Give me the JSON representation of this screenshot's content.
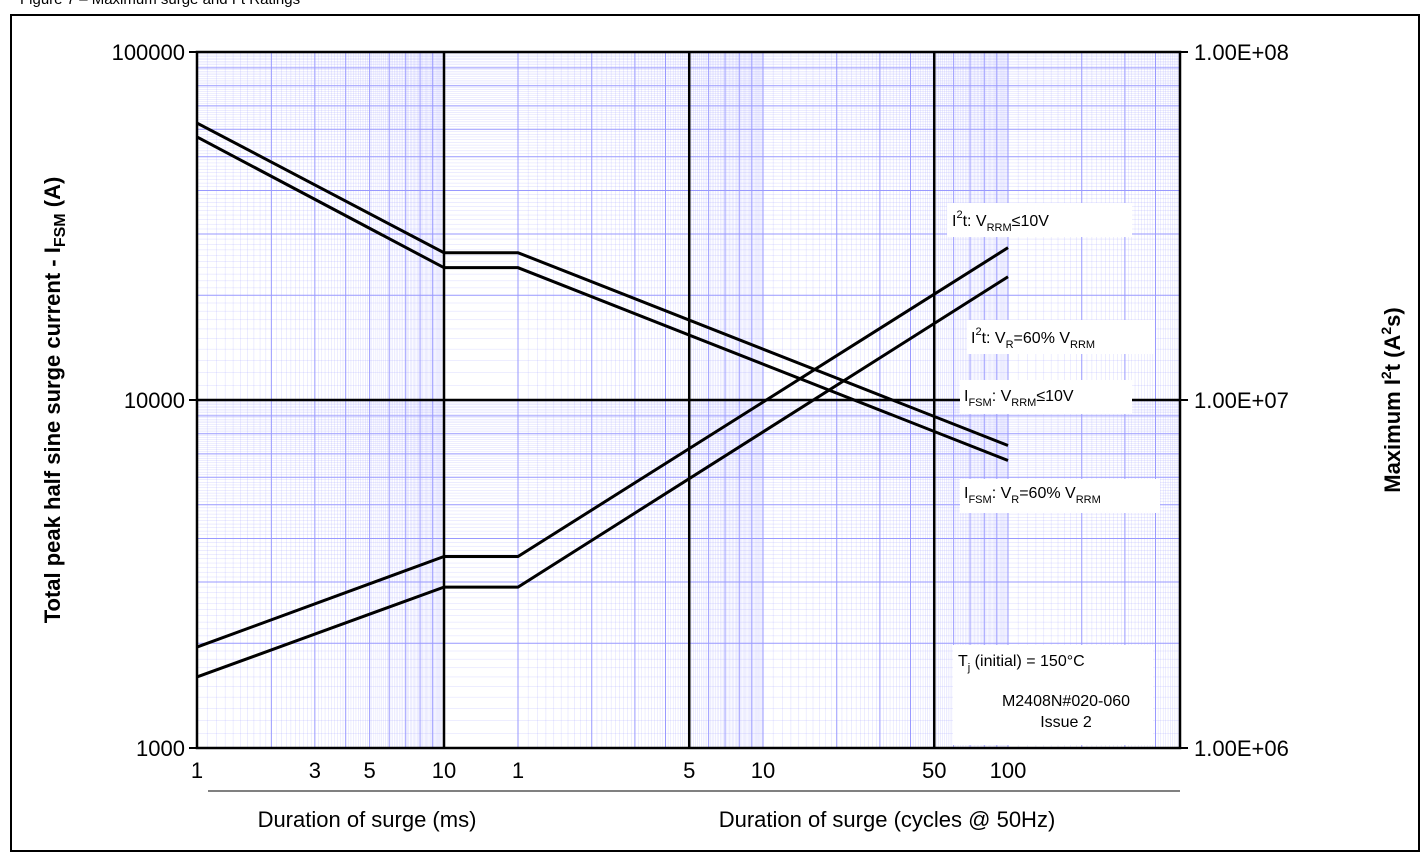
{
  "figure_caption": "Figure 7 – Maximum surge and I²t Ratings",
  "chart_data": {
    "type": "line",
    "left_axis": {
      "label_main": "Total peak half sine surge current - I",
      "label_sub": "FSM",
      "label_end": " (A)",
      "scale": "log",
      "range": [
        1000,
        100000
      ],
      "ticks": [
        "1000",
        "10000",
        "100000"
      ]
    },
    "right_axis": {
      "label_main": "Maximum I",
      "label_sup1": "2",
      "label_mid": "t (A",
      "label_sup2": "2",
      "label_end": "s)",
      "scale": "log",
      "range": [
        1000000,
        100000000
      ],
      "ticks": [
        "1.00E+06",
        "1.00E+07",
        "1.00E+08"
      ]
    },
    "x_axis_ms": {
      "label": "Duration of surge (ms)",
      "scale": "log",
      "range": [
        1,
        10
      ],
      "tick_labels": [
        "1",
        "3",
        "5",
        "10"
      ]
    },
    "x_axis_cycles": {
      "label": "Duration of surge (cycles @ 50Hz)",
      "scale": "log",
      "range": [
        1,
        100
      ],
      "tick_labels": [
        "1",
        "5",
        "10",
        "50",
        "100"
      ]
    },
    "grid": true,
    "series": [
      {
        "name": "I²t: VRRM≤10V",
        "axis": "right",
        "ms": [
          [
            1,
            1950000
          ],
          [
            10,
            3550000
          ]
        ],
        "cycles": [
          [
            1,
            3550000
          ],
          [
            100,
            27400000
          ]
        ]
      },
      {
        "name": "I²t: VR=60% VRRM",
        "axis": "right",
        "ms": [
          [
            1,
            1600000
          ],
          [
            10,
            2900000
          ]
        ],
        "cycles": [
          [
            1,
            2900000
          ],
          [
            100,
            22600000
          ]
        ]
      },
      {
        "name": "IFSM: VRRM≤10V",
        "axis": "left",
        "ms": [
          [
            1,
            62500
          ],
          [
            10,
            26500
          ]
        ],
        "cycles": [
          [
            1,
            26500
          ],
          [
            100,
            7400
          ]
        ]
      },
      {
        "name": "IFSM: VR=60% VRRM",
        "axis": "left",
        "ms": [
          [
            1,
            57000
          ],
          [
            10,
            24000
          ]
        ],
        "cycles": [
          [
            1,
            24000
          ],
          [
            100,
            6700
          ]
        ]
      }
    ],
    "annotations": {
      "l1": {
        "a": "I",
        "b": "2",
        "c": "t: V",
        "d": "RRM",
        "e": "≤10V"
      },
      "l2": {
        "a": "I",
        "b": "2",
        "c": "t: V",
        "d": "R",
        "e": "=60% V",
        "f": "RRM"
      },
      "l3": {
        "a": "I",
        "b": "FSM",
        "c": ": V",
        "d": "RRM",
        "e": "≤10V"
      },
      "l4": {
        "a": "I",
        "b": "FSM",
        "c": ": V",
        "d": "R",
        "e": "=60% V",
        "f": "RRM"
      },
      "tj": {
        "a": "T",
        "b": "j",
        "c": " (initial) = 150°C"
      },
      "code": "M2408N#020-060",
      "issue": "Issue 2"
    },
    "colors": {
      "grid": "#9999ff",
      "line": "#000000"
    }
  }
}
